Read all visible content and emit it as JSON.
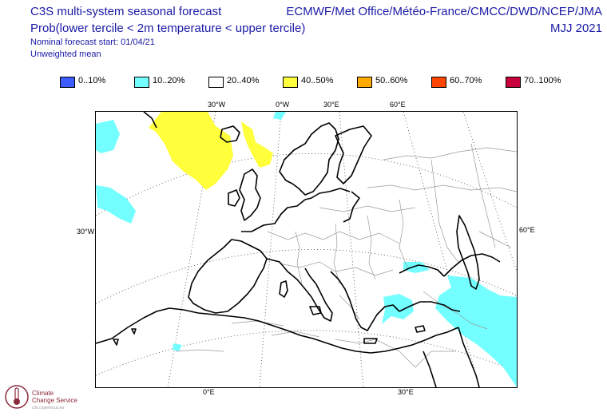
{
  "header": {
    "title": "C3S multi-system seasonal forecast",
    "subtitle": "Prob(lower tercile < 2m temperature < upper tercile)",
    "forecast_start": "Nominal forecast start: 01/04/21",
    "weighting": "Unweighted mean",
    "providers": "ECMWF/Met Office/Météo-France/CMCC/DWD/NCEP/JMA",
    "season": "MJJ 2021"
  },
  "legend": [
    {
      "label": "0..10%",
      "color": "#3c5cff"
    },
    {
      "label": "10..20%",
      "color": "#73ffff"
    },
    {
      "label": "20..40%",
      "color": "#ffffff"
    },
    {
      "label": "40..50%",
      "color": "#ffff3c"
    },
    {
      "label": "50..60%",
      "color": "#ffaa00"
    },
    {
      "label": "60..70%",
      "color": "#ff4600"
    },
    {
      "label": "70..100%",
      "color": "#c8003c"
    }
  ],
  "map": {
    "lon_ticks_top": [
      "30°W",
      "0°W",
      "30°E",
      "60°E"
    ],
    "lon_ticks_bottom": [
      "0°E",
      "30°E"
    ],
    "lat_tick_left": "30°W",
    "lat_tick_right": "60°E"
  },
  "logo": {
    "line1": "Climate",
    "line2": "Change Service",
    "line3": "c3s.copernicus.eu"
  }
}
